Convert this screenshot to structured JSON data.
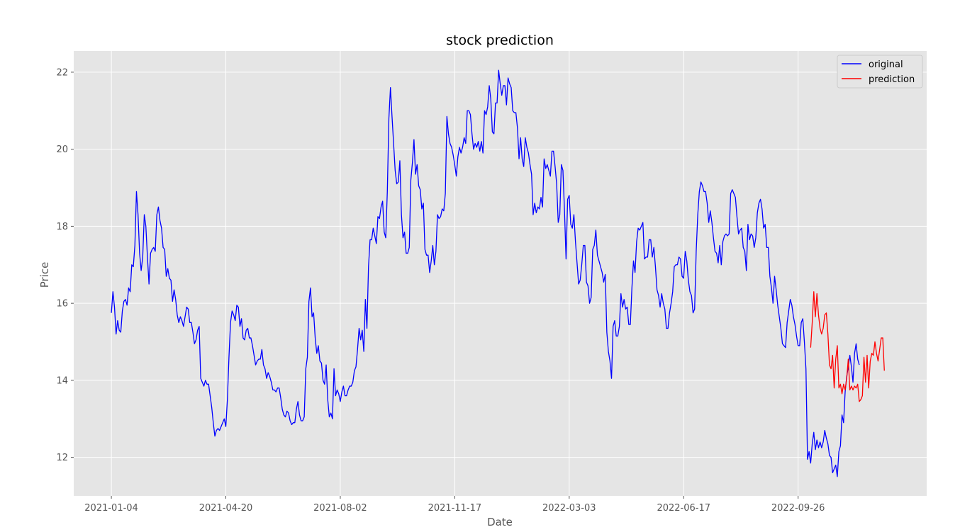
{
  "chart_data": {
    "type": "line",
    "title": "stock prediction",
    "xlabel": "Date",
    "ylabel": "Price",
    "x_tick_labels": [
      "2021-01-04",
      "2021-04-20",
      "2021-08-02",
      "2021-11-17",
      "2022-03-03",
      "2022-06-17",
      "2022-09-26"
    ],
    "x_tick_positions": [
      0,
      73,
      146,
      219,
      292,
      365,
      438
    ],
    "y_ticks": [
      12,
      14,
      16,
      18,
      20,
      22
    ],
    "xlim": [
      -24,
      520
    ],
    "ylim": [
      11.0,
      22.55
    ],
    "grid": true,
    "legend_position": "top-right",
    "colors": {
      "original": "#0000ff",
      "prediction": "#ff0000",
      "background": "#e5e5e5",
      "grid": "#ffffff"
    },
    "series": [
      {
        "name": "original",
        "x_start": 0,
        "values": [
          15.75,
          16.3,
          15.9,
          15.2,
          15.55,
          15.3,
          15.25,
          15.8,
          16.05,
          16.1,
          15.95,
          16.4,
          16.3,
          17.0,
          16.95,
          17.5,
          18.9,
          18.3,
          17.3,
          16.85,
          17.2,
          18.3,
          18.0,
          17.2,
          16.5,
          17.3,
          17.4,
          17.45,
          17.35,
          18.3,
          18.5,
          18.15,
          17.95,
          17.45,
          17.4,
          16.7,
          16.9,
          16.65,
          16.6,
          16.05,
          16.35,
          16.1,
          15.7,
          15.5,
          15.65,
          15.55,
          15.4,
          15.65,
          15.9,
          15.85,
          15.5,
          15.5,
          15.25,
          14.95,
          15.05,
          15.3,
          15.4,
          14.05,
          13.95,
          13.85,
          14.0,
          13.9,
          13.9,
          13.6,
          13.3,
          12.9,
          12.55,
          12.7,
          12.75,
          12.7,
          12.8,
          12.9,
          13.0,
          12.8,
          13.5,
          14.6,
          15.5,
          15.8,
          15.7,
          15.55,
          15.95,
          15.9,
          15.4,
          15.6,
          15.1,
          15.05,
          15.3,
          15.35,
          15.1,
          15.1,
          14.9,
          14.65,
          14.4,
          14.5,
          14.55,
          14.55,
          14.8,
          14.4,
          14.3,
          14.05,
          14.2,
          14.1,
          13.95,
          13.75,
          13.75,
          13.7,
          13.8,
          13.8,
          13.55,
          13.25,
          13.1,
          13.05,
          13.2,
          13.15,
          12.95,
          12.85,
          12.9,
          12.9,
          13.25,
          13.45,
          13.1,
          12.95,
          12.95,
          13.05,
          14.3,
          14.6,
          16.05,
          16.4,
          15.65,
          15.75,
          15.1,
          14.7,
          14.9,
          14.5,
          14.45,
          14.0,
          13.9,
          14.4,
          13.5,
          13.05,
          13.15,
          13.0,
          14.3,
          13.6,
          13.75,
          13.65,
          13.45,
          13.7,
          13.85,
          13.6,
          13.6,
          13.75,
          13.85,
          13.85,
          13.95,
          14.25,
          14.35,
          14.8,
          15.35,
          15.05,
          15.3,
          14.75,
          16.1,
          15.35,
          16.95,
          17.65,
          17.65,
          17.95,
          17.75,
          17.55,
          18.25,
          18.2,
          18.5,
          18.65,
          17.85,
          17.7,
          18.9,
          20.8,
          21.6,
          20.85,
          20.15,
          19.45,
          19.1,
          19.15,
          19.7,
          18.3,
          17.7,
          17.85,
          17.3,
          17.3,
          17.45,
          19.2,
          19.65,
          20.25,
          19.35,
          19.6,
          19.05,
          18.95,
          18.45,
          18.6,
          17.4,
          17.25,
          17.25,
          16.8,
          17.1,
          17.5,
          17.0,
          17.35,
          18.3,
          18.2,
          18.25,
          18.45,
          18.4,
          18.85,
          20.85,
          20.4,
          20.15,
          20.05,
          19.85,
          19.6,
          19.3,
          19.8,
          20.05,
          19.9,
          20.05,
          20.3,
          20.15,
          21.0,
          21.0,
          20.9,
          20.4,
          20.0,
          20.15,
          20.05,
          20.2,
          19.95,
          20.2,
          19.9,
          21.0,
          20.9,
          21.1,
          21.65,
          21.3,
          20.45,
          20.4,
          21.2,
          21.2,
          22.05,
          21.7,
          21.4,
          21.65,
          21.65,
          21.15,
          21.85,
          21.7,
          21.6,
          21.0,
          20.95,
          20.95,
          20.55,
          19.75,
          20.3,
          19.75,
          19.55,
          20.3,
          20.05,
          19.9,
          19.6,
          19.35,
          18.3,
          18.6,
          18.35,
          18.5,
          18.45,
          18.75,
          18.5,
          19.75,
          19.5,
          19.6,
          19.45,
          19.3,
          19.95,
          19.95,
          19.55,
          19.1,
          18.1,
          18.3,
          19.6,
          19.45,
          18.4,
          17.15,
          18.7,
          18.8,
          18.05,
          17.95,
          18.3,
          17.6,
          17.05,
          16.5,
          16.6,
          17.0,
          17.5,
          17.5,
          16.55,
          16.45,
          16.0,
          16.15,
          17.4,
          17.5,
          17.9,
          17.25,
          17.1,
          16.95,
          16.8,
          16.55,
          16.75,
          15.25,
          14.75,
          14.5,
          14.05,
          15.4,
          15.55,
          15.15,
          15.15,
          15.4,
          16.25,
          15.9,
          16.1,
          15.85,
          15.9,
          15.45,
          15.45,
          16.4,
          17.1,
          16.8,
          17.6,
          17.95,
          17.9,
          18.0,
          18.1,
          17.15,
          17.2,
          17.2,
          17.65,
          17.65,
          17.2,
          17.45,
          16.95,
          16.35,
          16.2,
          15.9,
          16.25,
          16.0,
          15.85,
          15.35,
          15.35,
          15.75,
          16.0,
          16.3,
          16.95,
          17.0,
          17.0,
          17.2,
          17.15,
          16.7,
          16.65,
          17.35,
          17.1,
          16.6,
          16.3,
          16.2,
          15.75,
          15.85,
          17.35,
          18.3,
          18.9,
          19.15,
          19.05,
          18.9,
          18.9,
          18.6,
          18.1,
          18.4,
          18.1,
          17.7,
          17.35,
          17.3,
          17.05,
          17.5,
          17.0,
          17.6,
          17.75,
          17.8,
          17.75,
          17.8,
          18.85,
          18.95,
          18.85,
          18.75,
          18.25,
          17.8,
          17.9,
          17.95,
          17.45,
          17.35,
          16.85,
          18.05,
          17.65,
          17.8,
          17.75,
          17.45,
          17.7,
          18.35,
          18.6,
          18.7,
          18.45,
          17.95,
          18.05,
          17.45,
          17.45,
          16.7,
          16.4,
          16.0,
          16.7,
          16.35,
          15.95,
          15.65,
          15.35,
          14.95,
          14.9,
          14.85,
          15.5,
          15.8,
          16.1,
          15.95,
          15.65,
          15.45,
          15.15,
          14.9,
          14.9,
          15.5,
          15.6,
          15.0,
          14.3,
          11.95,
          12.15,
          11.85,
          12.35,
          12.65,
          12.2,
          12.45,
          12.25,
          12.4,
          12.25,
          12.4,
          12.7,
          12.5,
          12.35,
          12.05,
          12.0,
          11.6,
          11.7,
          11.8,
          11.5,
          12.15,
          12.3,
          13.1,
          12.9,
          13.7,
          14.1,
          14.35,
          14.65,
          14.35,
          13.95,
          14.7,
          14.95,
          14.55,
          14.4
        ]
      },
      {
        "name": "prediction",
        "x_start": 446,
        "values": [
          14.85,
          15.5,
          16.3,
          15.65,
          16.25,
          15.7,
          15.35,
          15.2,
          15.35,
          15.7,
          15.75,
          15.2,
          14.4,
          14.3,
          14.65,
          13.8,
          14.55,
          14.9,
          13.8,
          13.9,
          13.65,
          13.9,
          13.75,
          14.05,
          14.55,
          13.75,
          13.85,
          13.75,
          13.85,
          13.8,
          13.9,
          13.45,
          13.5,
          13.6,
          14.6,
          13.95,
          14.65,
          13.8,
          14.5,
          14.7,
          14.65,
          15.0,
          14.7,
          14.5,
          14.8,
          15.1,
          15.1,
          14.25
        ]
      }
    ]
  }
}
